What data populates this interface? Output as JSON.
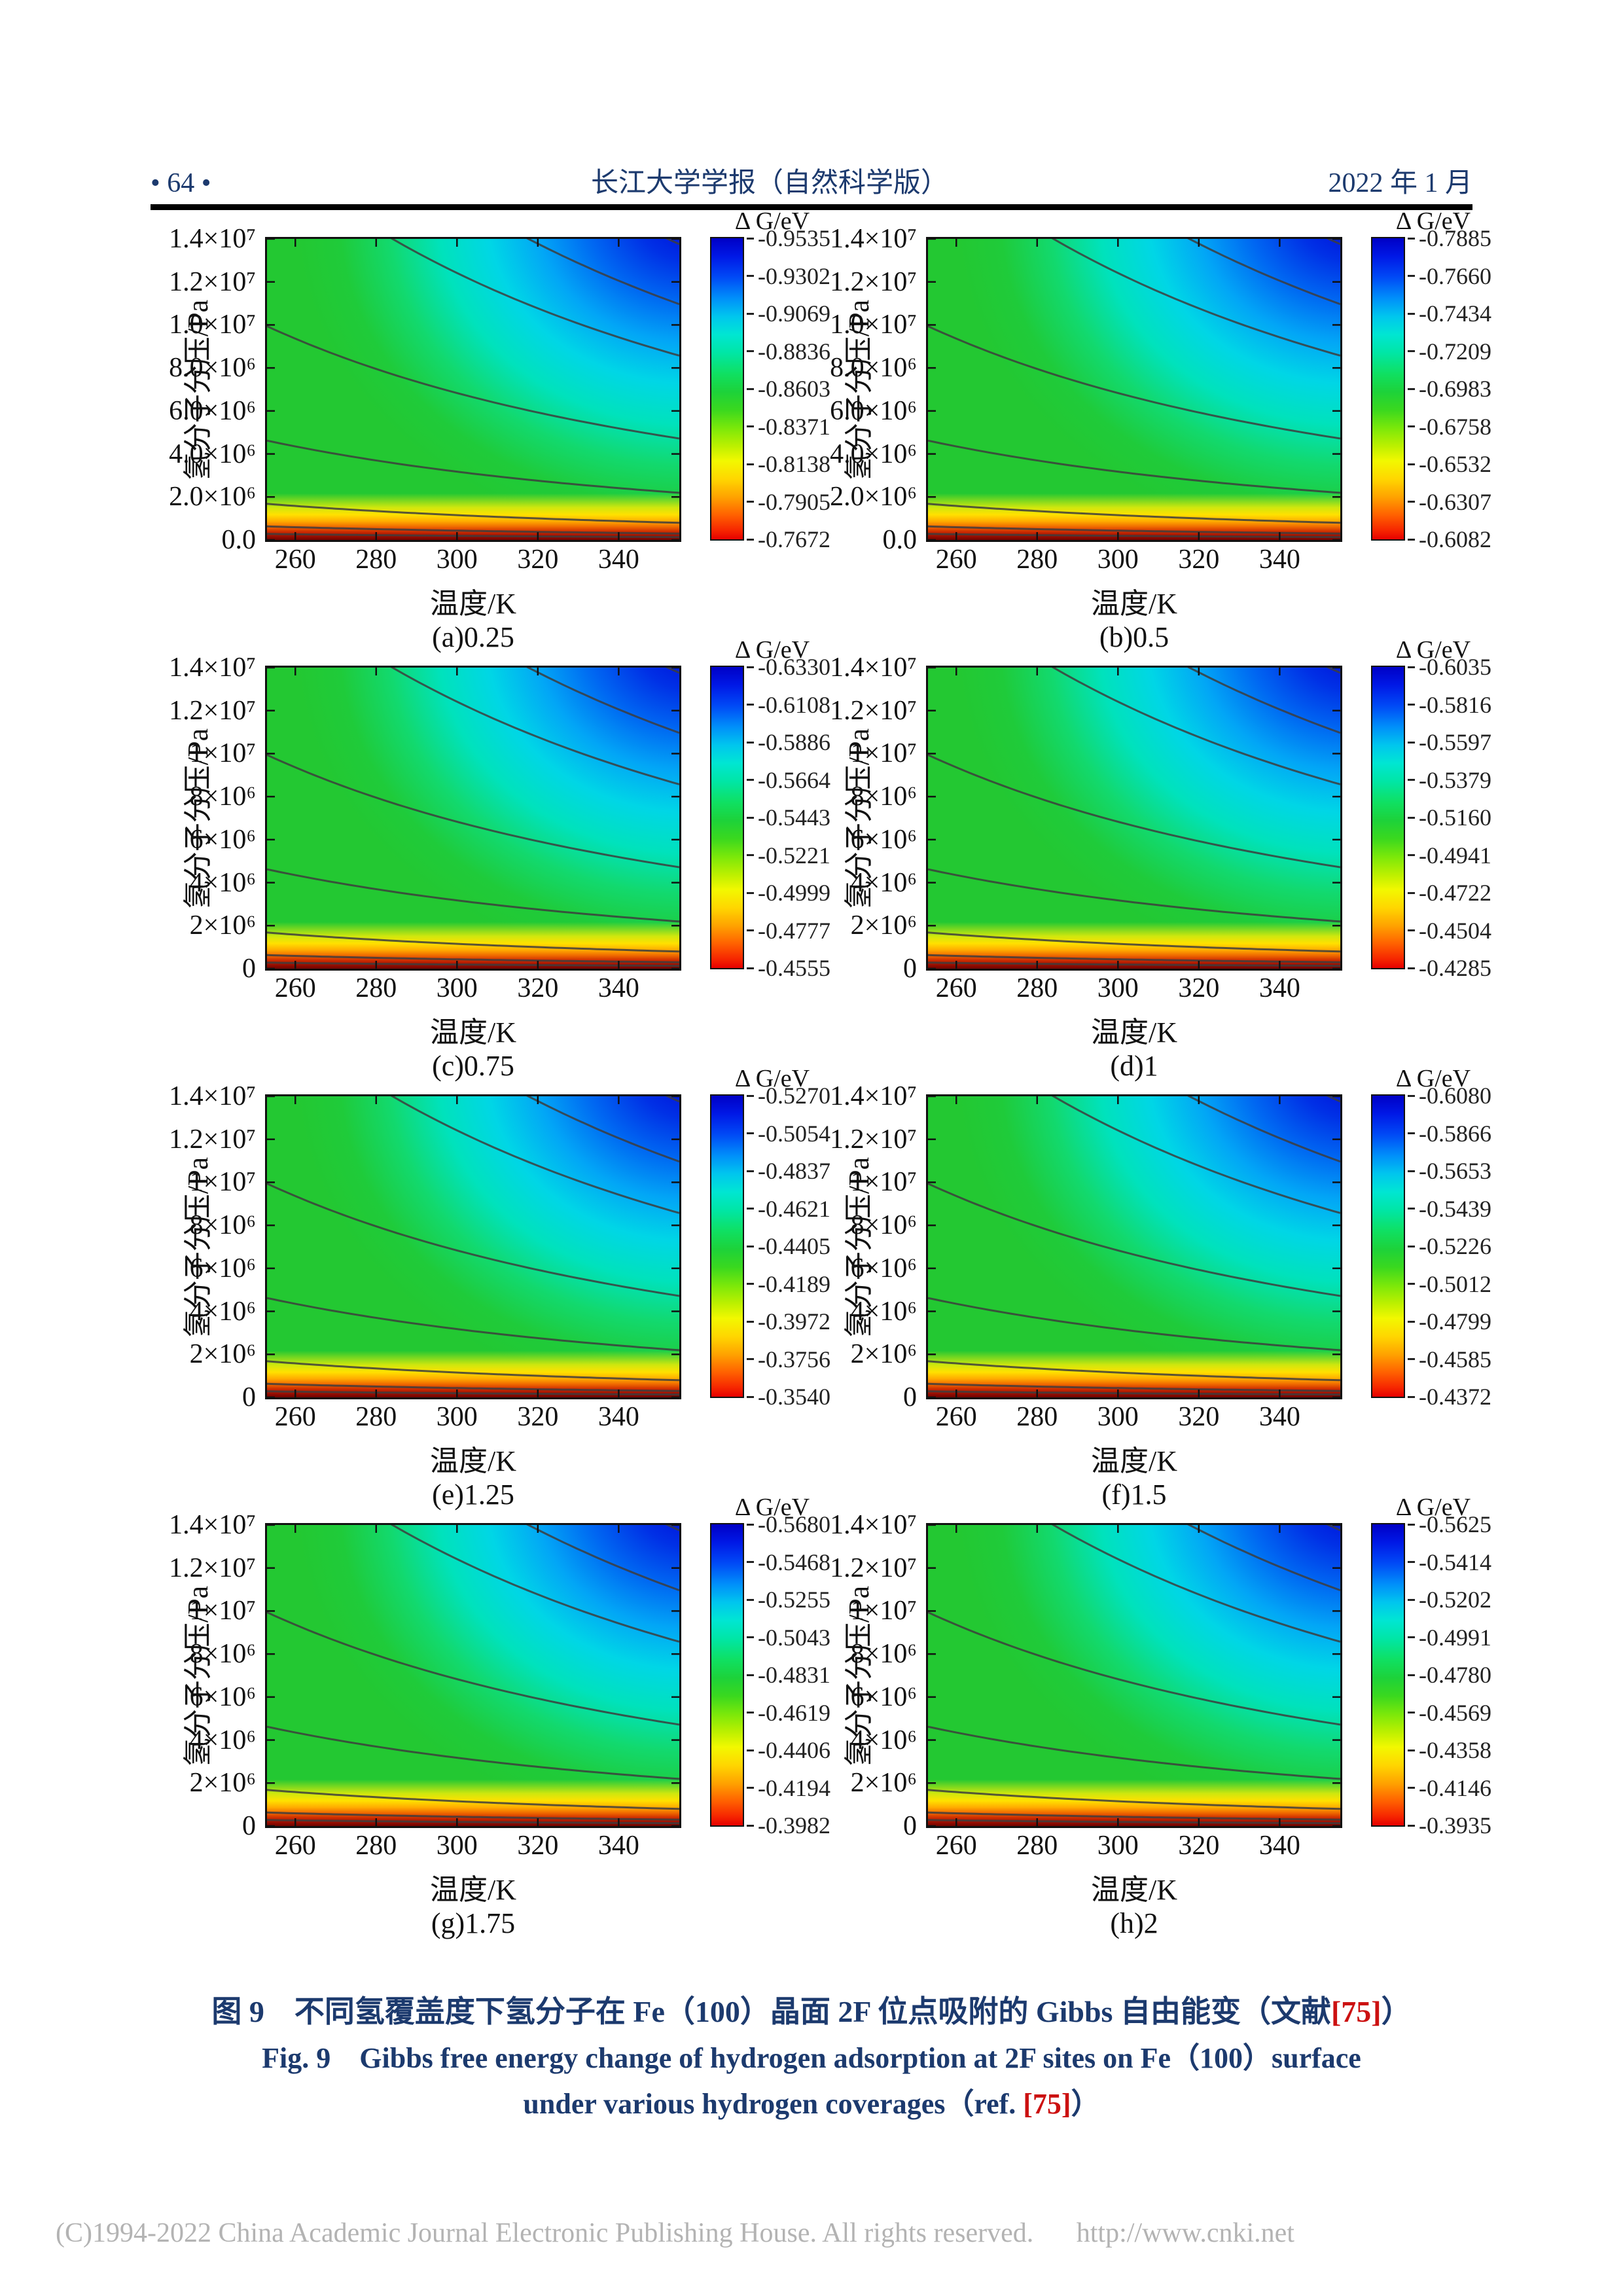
{
  "colors": {
    "header_text": "#1c3a6e",
    "caption_text": "#1c3a6e",
    "reference_red": "#cc1111",
    "footer_text": "#b3b3b3"
  },
  "header": {
    "page_number": "• 64 •",
    "journal_title": "长江大学学报（自然科学版）",
    "issue_date": "2022 年 1 月"
  },
  "figure_caption": {
    "zh": {
      "prefix": "图 9　不同氢覆盖度下氢分子在 Fe（100）晶面 2F 位点吸附的 Gibbs 自由能变（文献",
      "ref": "[75]",
      "suffix": "）"
    },
    "en1": "Fig. 9　Gibbs free energy change of hydrogen adsorption at 2F sites on Fe（100）surface",
    "en2": {
      "prefix": "under various hydrogen coverages（ref. ",
      "ref": "[75]",
      "suffix": "）"
    }
  },
  "footer": {
    "copyright": "(C)1994-2022 China Academic Journal Electronic Publishing House. All rights reserved.",
    "url": "http://www.cnki.net"
  },
  "chart_data": [
    {
      "id": "a",
      "type": "heatmap",
      "label": "(a)0.25",
      "coverage": 0.25,
      "xlabel": "温度/K",
      "ylabel": "氢分子分压/Pa",
      "xlim": [
        253,
        355
      ],
      "x_ticks": [
        260,
        280,
        300,
        320,
        340
      ],
      "ylim": [
        0,
        14000000
      ],
      "y_ticks": [
        "1.4×10⁷",
        "1.2×10⁷",
        "1.0×10⁷",
        "8.0×10⁶",
        "6.0×10⁶",
        "4.0×10⁶",
        "2.0×10⁶",
        "0.0"
      ],
      "colorbar": {
        "title": "Δ G/eV",
        "ticks": [
          "-0.9535",
          "-0.9302",
          "-0.9069",
          "-0.8836",
          "-0.8603",
          "-0.8371",
          "-0.8138",
          "-0.7905",
          "-0.7672"
        ]
      }
    },
    {
      "id": "b",
      "type": "heatmap",
      "label": "(b)0.5",
      "coverage": 0.5,
      "xlabel": "温度/K",
      "ylabel": "氢分子分压/Pa",
      "xlim": [
        253,
        355
      ],
      "x_ticks": [
        260,
        280,
        300,
        320,
        340
      ],
      "ylim": [
        0,
        14000000
      ],
      "y_ticks": [
        "1.4×10⁷",
        "1.2×10⁷",
        "1.0×10⁷",
        "8.0×10⁶",
        "6.0×10⁶",
        "4.0×10⁶",
        "2.0×10⁶",
        "0.0"
      ],
      "colorbar": {
        "title": "Δ G/eV",
        "ticks": [
          "-0.7885",
          "-0.7660",
          "-0.7434",
          "-0.7209",
          "-0.6983",
          "-0.6758",
          "-0.6532",
          "-0.6307",
          "-0.6082"
        ]
      }
    },
    {
      "id": "c",
      "type": "heatmap",
      "label": "(c)0.75",
      "coverage": 0.75,
      "xlabel": "温度/K",
      "ylabel": "氢分子分压/Pa",
      "xlim": [
        253,
        355
      ],
      "x_ticks": [
        260,
        280,
        300,
        320,
        340
      ],
      "ylim": [
        0,
        14000000
      ],
      "y_ticks": [
        "1.4×10⁷",
        "1.2×10⁷",
        "1×10⁷",
        "8×10⁶",
        "6×10⁶",
        "4×10⁶",
        "2×10⁶",
        "0"
      ],
      "colorbar": {
        "title": "Δ G/eV",
        "ticks": [
          "-0.6330",
          "-0.6108",
          "-0.5886",
          "-0.5664",
          "-0.5443",
          "-0.5221",
          "-0.4999",
          "-0.4777",
          "-0.4555"
        ]
      }
    },
    {
      "id": "d",
      "type": "heatmap",
      "label": "(d)1",
      "coverage": 1,
      "xlabel": "温度/K",
      "ylabel": "氢分子分压/Pa",
      "xlim": [
        253,
        355
      ],
      "x_ticks": [
        260,
        280,
        300,
        320,
        340
      ],
      "ylim": [
        0,
        14000000
      ],
      "y_ticks": [
        "1.4×10⁷",
        "1.2×10⁷",
        "1×10⁷",
        "8×10⁶",
        "6×10⁶",
        "4×10⁶",
        "2×10⁶",
        "0"
      ],
      "colorbar": {
        "title": "Δ G/eV",
        "ticks": [
          "-0.6035",
          "-0.5816",
          "-0.5597",
          "-0.5379",
          "-0.5160",
          "-0.4941",
          "-0.4722",
          "-0.4504",
          "-0.4285"
        ]
      }
    },
    {
      "id": "e",
      "type": "heatmap",
      "label": "(e)1.25",
      "coverage": 1.25,
      "xlabel": "温度/K",
      "ylabel": "氢分子分压/Pa",
      "xlim": [
        253,
        355
      ],
      "x_ticks": [
        260,
        280,
        300,
        320,
        340
      ],
      "ylim": [
        0,
        14000000
      ],
      "y_ticks": [
        "1.4×10⁷",
        "1.2×10⁷",
        "1×10⁷",
        "8×10⁶",
        "6×10⁶",
        "4×10⁶",
        "2×10⁶",
        "0"
      ],
      "colorbar": {
        "title": "Δ G/eV",
        "ticks": [
          "-0.5270",
          "-0.5054",
          "-0.4837",
          "-0.4621",
          "-0.4405",
          "-0.4189",
          "-0.3972",
          "-0.3756",
          "-0.3540"
        ]
      }
    },
    {
      "id": "f",
      "type": "heatmap",
      "label": "(f)1.5",
      "coverage": 1.5,
      "xlabel": "温度/K",
      "ylabel": "氢分子分压/Pa",
      "xlim": [
        253,
        355
      ],
      "x_ticks": [
        260,
        280,
        300,
        320,
        340
      ],
      "ylim": [
        0,
        14000000
      ],
      "y_ticks": [
        "1.4×10⁷",
        "1.2×10⁷",
        "1×10⁷",
        "8×10⁶",
        "6×10⁶",
        "4×10⁶",
        "2×10⁶",
        "0"
      ],
      "colorbar": {
        "title": "Δ G/eV",
        "ticks": [
          "-0.6080",
          "-0.5866",
          "-0.5653",
          "-0.5439",
          "-0.5226",
          "-0.5012",
          "-0.4799",
          "-0.4585",
          "-0.4372"
        ]
      }
    },
    {
      "id": "g",
      "type": "heatmap",
      "label": "(g)1.75",
      "coverage": 1.75,
      "xlabel": "温度/K",
      "ylabel": "氢分子分压/Pa",
      "xlim": [
        253,
        355
      ],
      "x_ticks": [
        260,
        280,
        300,
        320,
        340
      ],
      "ylim": [
        0,
        14000000
      ],
      "y_ticks": [
        "1.4×10⁷",
        "1.2×10⁷",
        "1×10⁷",
        "8×10⁶",
        "6×10⁶",
        "4×10⁶",
        "2×10⁶",
        "0"
      ],
      "colorbar": {
        "title": "Δ G/eV",
        "ticks": [
          "-0.5680",
          "-0.5468",
          "-0.5255",
          "-0.5043",
          "-0.4831",
          "-0.4619",
          "-0.4406",
          "-0.4194",
          "-0.3982"
        ]
      }
    },
    {
      "id": "h",
      "type": "heatmap",
      "label": "(h)2",
      "coverage": 2,
      "xlabel": "温度/K",
      "ylabel": "氢分子分压/Pa",
      "xlim": [
        253,
        355
      ],
      "x_ticks": [
        260,
        280,
        300,
        320,
        340
      ],
      "ylim": [
        0,
        14000000
      ],
      "y_ticks": [
        "1.4×10⁷",
        "1.2×10⁷",
        "1×10⁷",
        "8×10⁶",
        "6×10⁶",
        "4×10⁶",
        "2×10⁶",
        "0"
      ],
      "colorbar": {
        "title": "Δ G/eV",
        "ticks": [
          "-0.5625",
          "-0.5414",
          "-0.5202",
          "-0.4991",
          "-0.4780",
          "-0.4569",
          "-0.4358",
          "-0.4146",
          "-0.3935"
        ]
      }
    }
  ]
}
